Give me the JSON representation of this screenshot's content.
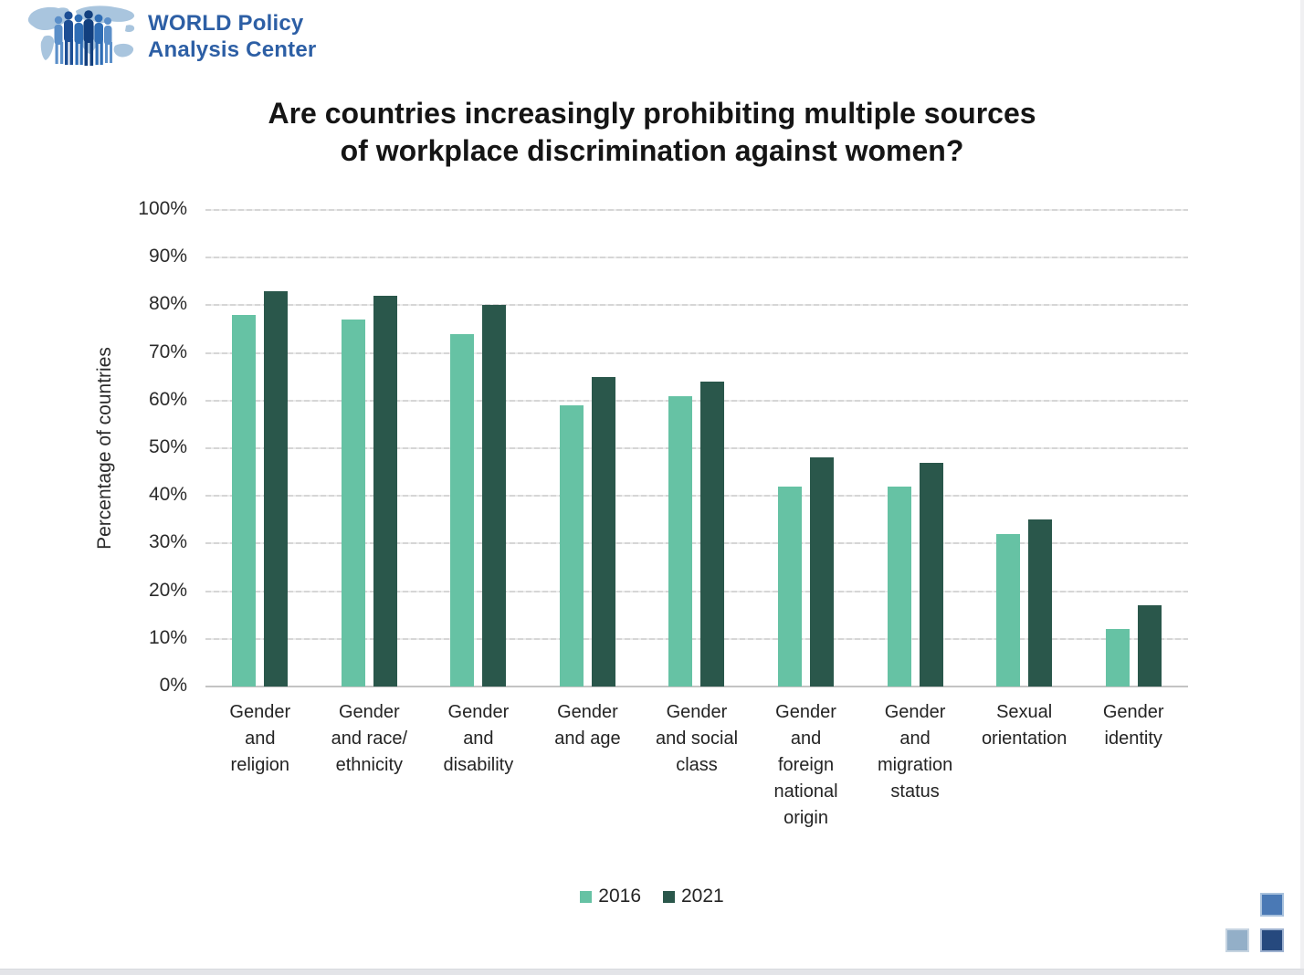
{
  "logo": {
    "line1": "WORLD Policy",
    "line2": "Analysis Center",
    "brand_blue": "#2d5fa5",
    "map_light_blue": "#a9c5de",
    "people_blue_dark": "#1d4e94",
    "people_blue_mid": "#2f6db5",
    "people_blue_light": "#5b8fc9"
  },
  "title": {
    "line1": "Are countries increasingly prohibiting multiple sources",
    "line2": "of workplace discrimination against women?"
  },
  "chart_data": {
    "type": "bar",
    "title": "Are countries increasingly prohibiting multiple sources of workplace discrimination against women?",
    "xlabel": "",
    "ylabel": "Percentage of countries",
    "ylim": [
      0,
      100
    ],
    "ytick_step": 10,
    "ytick_suffix": "%",
    "grid": true,
    "legend_position": "bottom",
    "categories": [
      "Gender and religion",
      "Gender and race/ethnicity",
      "Gender and disability",
      "Gender and age",
      "Gender and social class",
      "Gender and foreign national origin",
      "Gender and migration status",
      "Sexual orientation",
      "Gender identity"
    ],
    "category_label_lines": [
      [
        "Gender",
        "and",
        "religion"
      ],
      [
        "Gender",
        "and race/",
        "ethnicity"
      ],
      [
        "Gender",
        "and",
        "disability"
      ],
      [
        "Gender",
        "and age"
      ],
      [
        "Gender",
        "and social",
        "class"
      ],
      [
        "Gender",
        "and",
        "foreign",
        "national",
        "origin"
      ],
      [
        "Gender",
        "and",
        "migration",
        "status"
      ],
      [
        "Sexual",
        "orientation"
      ],
      [
        "Gender",
        "identity"
      ]
    ],
    "series": [
      {
        "name": "2016",
        "color": "#66c2a4",
        "values": [
          78,
          77,
          74,
          59,
          61,
          42,
          42,
          32,
          12
        ]
      },
      {
        "name": "2021",
        "color": "#2a574b",
        "values": [
          83,
          82,
          80,
          65,
          64,
          48,
          47,
          35,
          17
        ]
      }
    ]
  },
  "decor": {
    "corner_squares": [
      {
        "position": "top-right",
        "color": "#4a79b5",
        "border": "#a9c2dd"
      },
      {
        "position": "bottom-left",
        "color": "#93afc8",
        "border": "#c6d4e1"
      },
      {
        "position": "bottom-right",
        "color": "#26497e",
        "border": "#9eb2d0"
      }
    ],
    "edge_strip_color": "#e3e4e8"
  }
}
